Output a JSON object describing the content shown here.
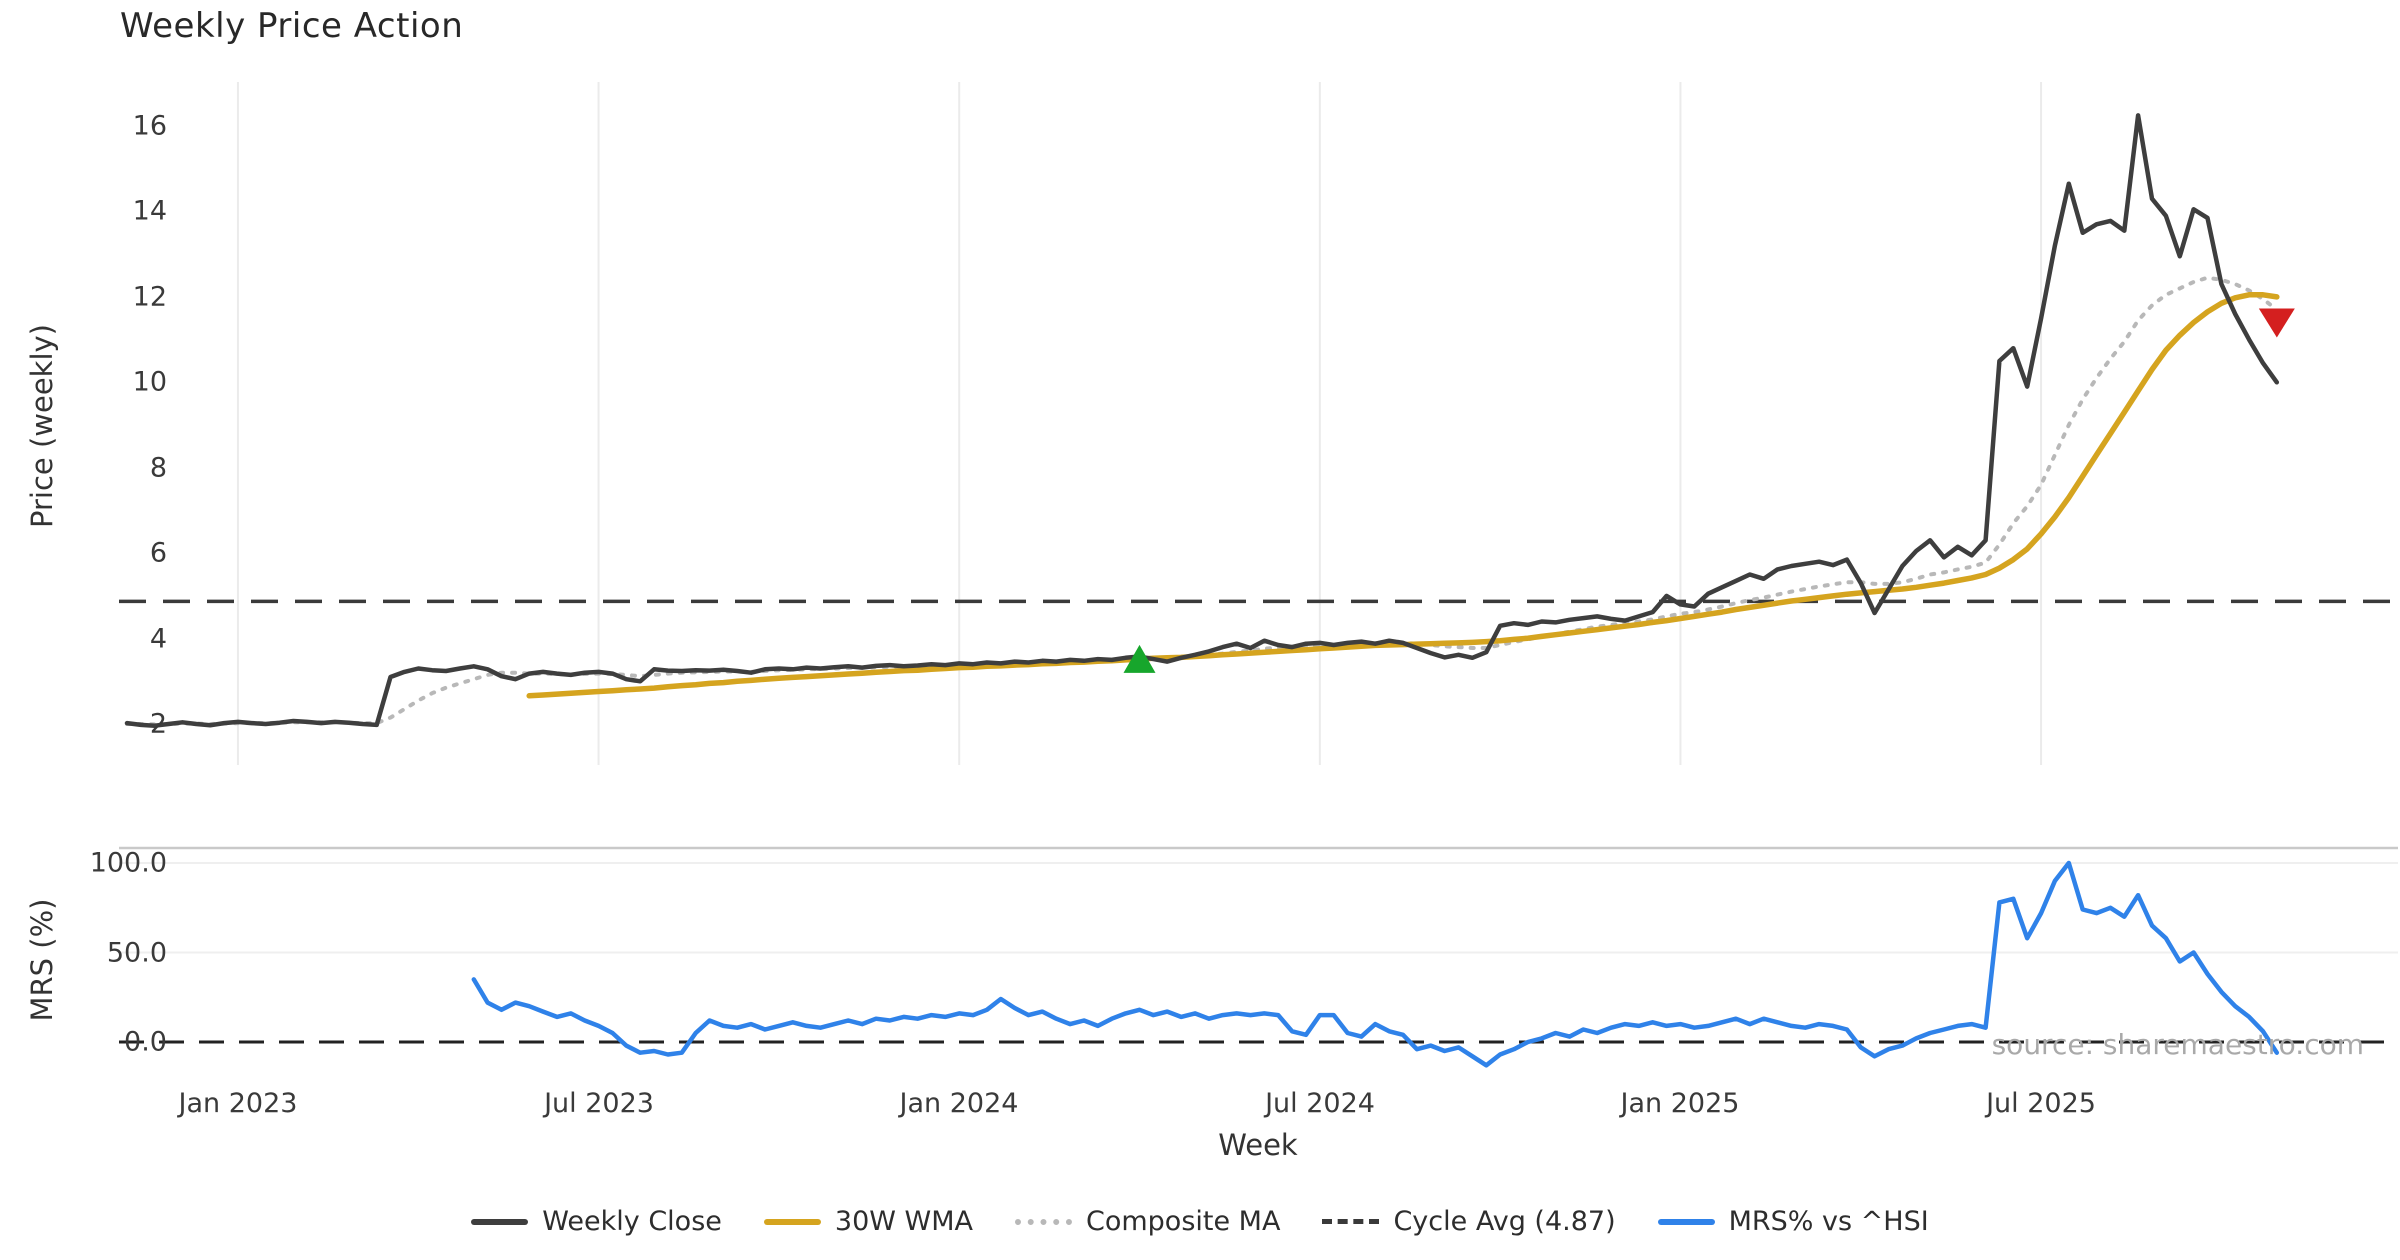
{
  "title": "Weekly Price Action",
  "watermark": "source: sharemaestro.com",
  "axes": {
    "price_ylabel": "Price (weekly)",
    "mrs_ylabel": "MRS (%)",
    "xlabel": "Week"
  },
  "colors": {
    "close": "#3e3e3e",
    "wma": "#d5a41f",
    "composite": "#b8b8b8",
    "cycle": "#3a3a3a",
    "mrs": "#2f82e9",
    "buy_marker": "#17a62c",
    "sell_marker": "#d41f1f",
    "grid": "#ebebeb",
    "hgrid": "#efefef",
    "spine": "#c9c9c9",
    "zero_line": "#222222"
  },
  "legend": {
    "items": [
      {
        "label": "Weekly Close",
        "pattern": "solid",
        "color": "#3e3e3e"
      },
      {
        "label": "30W WMA",
        "pattern": "solid",
        "color": "#d5a41f"
      },
      {
        "label": "Composite MA",
        "pattern": "dotted",
        "color": "#b8b8b8"
      },
      {
        "label": "Cycle Avg (4.87)",
        "pattern": "dashed",
        "color": "#3a3a3a"
      },
      {
        "label": "MRS% vs ^HSI",
        "pattern": "solid",
        "color": "#2f82e9"
      }
    ]
  },
  "chart_data": [
    {
      "type": "line",
      "panel": "price",
      "title": "Weekly Price Action",
      "ylabel": "Price (weekly)",
      "ylim": [
        1.0,
        17.0
      ],
      "y_ticks": [
        2,
        4,
        6,
        8,
        10,
        12,
        14,
        16
      ],
      "x_ticks": [
        {
          "week": 8,
          "label": "Jan 2023"
        },
        {
          "week": 34,
          "label": "Jul 2023"
        },
        {
          "week": 60,
          "label": "Jan 2024"
        },
        {
          "week": 86,
          "label": "Jul 2024"
        },
        {
          "week": 112,
          "label": "Jan 2025"
        },
        {
          "week": 138,
          "label": "Jul 2025"
        }
      ],
      "grid": "vertical",
      "cycle_avg": 4.87,
      "series": [
        {
          "name": "Weekly Close",
          "start_week": 0,
          "values": [
            2.02,
            1.98,
            1.96,
            2.0,
            2.04,
            2.0,
            1.97,
            2.02,
            2.05,
            2.02,
            2.0,
            2.03,
            2.07,
            2.05,
            2.02,
            2.05,
            2.03,
            2.0,
            1.98,
            3.1,
            3.22,
            3.3,
            3.26,
            3.24,
            3.3,
            3.35,
            3.28,
            3.12,
            3.05,
            3.18,
            3.22,
            3.18,
            3.15,
            3.2,
            3.22,
            3.18,
            3.05,
            3.0,
            3.28,
            3.25,
            3.24,
            3.26,
            3.25,
            3.27,
            3.24,
            3.2,
            3.28,
            3.3,
            3.28,
            3.32,
            3.3,
            3.33,
            3.35,
            3.32,
            3.36,
            3.38,
            3.35,
            3.37,
            3.4,
            3.38,
            3.42,
            3.4,
            3.44,
            3.42,
            3.46,
            3.44,
            3.48,
            3.46,
            3.5,
            3.48,
            3.52,
            3.5,
            3.55,
            3.58,
            3.52,
            3.46,
            3.55,
            3.62,
            3.7,
            3.8,
            3.88,
            3.78,
            3.95,
            3.85,
            3.8,
            3.88,
            3.9,
            3.85,
            3.9,
            3.93,
            3.88,
            3.95,
            3.9,
            3.78,
            3.66,
            3.56,
            3.62,
            3.55,
            3.68,
            4.3,
            4.36,
            4.32,
            4.4,
            4.38,
            4.44,
            4.48,
            4.52,
            4.46,
            4.42,
            4.52,
            4.62,
            5.0,
            4.8,
            4.75,
            5.05,
            5.2,
            5.35,
            5.5,
            5.4,
            5.62,
            5.7,
            5.75,
            5.8,
            5.72,
            5.85,
            5.3,
            4.6,
            5.15,
            5.7,
            6.05,
            6.3,
            5.9,
            6.15,
            5.95,
            6.3,
            10.5,
            10.8,
            9.9,
            11.5,
            13.2,
            14.65,
            13.5,
            13.7,
            13.78,
            13.55,
            16.25,
            14.3,
            13.9,
            12.95,
            14.05,
            13.85,
            12.3,
            11.6,
            11.0,
            10.45,
            10.0
          ]
        },
        {
          "name": "30W WMA",
          "start_week": 29,
          "values": [
            2.66,
            2.68,
            2.7,
            2.72,
            2.74,
            2.76,
            2.78,
            2.8,
            2.82,
            2.84,
            2.87,
            2.9,
            2.92,
            2.95,
            2.97,
            3.0,
            3.02,
            3.05,
            3.07,
            3.09,
            3.11,
            3.13,
            3.15,
            3.17,
            3.19,
            3.21,
            3.23,
            3.25,
            3.26,
            3.28,
            3.3,
            3.32,
            3.33,
            3.35,
            3.36,
            3.38,
            3.39,
            3.41,
            3.42,
            3.44,
            3.45,
            3.47,
            3.48,
            3.5,
            3.52,
            3.54,
            3.55,
            3.56,
            3.58,
            3.6,
            3.62,
            3.64,
            3.66,
            3.68,
            3.7,
            3.72,
            3.74,
            3.76,
            3.78,
            3.8,
            3.82,
            3.84,
            3.85,
            3.86,
            3.87,
            3.88,
            3.89,
            3.9,
            3.91,
            3.93,
            3.95,
            3.98,
            4.01,
            4.05,
            4.09,
            4.13,
            4.17,
            4.21,
            4.25,
            4.29,
            4.33,
            4.38,
            4.42,
            4.47,
            4.52,
            4.57,
            4.62,
            4.68,
            4.73,
            4.78,
            4.83,
            4.88,
            4.92,
            4.96,
            5.0,
            5.04,
            5.07,
            5.1,
            5.13,
            5.16,
            5.2,
            5.25,
            5.3,
            5.36,
            5.42,
            5.5,
            5.65,
            5.85,
            6.1,
            6.45,
            6.85,
            7.3,
            7.8,
            8.3,
            8.8,
            9.3,
            9.8,
            10.3,
            10.75,
            11.1,
            11.4,
            11.65,
            11.85,
            11.98,
            12.05,
            12.05,
            12.0
          ]
        },
        {
          "name": "Composite MA",
          "start_week": 0,
          "values": [
            2.0,
            2.0,
            1.99,
            2.0,
            2.01,
            2.01,
            2.0,
            2.01,
            2.02,
            2.02,
            2.02,
            2.03,
            2.04,
            2.04,
            2.04,
            2.04,
            2.03,
            2.02,
            2.02,
            2.15,
            2.35,
            2.55,
            2.72,
            2.85,
            2.95,
            3.05,
            3.15,
            3.2,
            3.2,
            3.18,
            3.18,
            3.17,
            3.16,
            3.17,
            3.18,
            3.17,
            3.15,
            3.12,
            3.15,
            3.18,
            3.2,
            3.21,
            3.22,
            3.23,
            3.23,
            3.22,
            3.24,
            3.26,
            3.27,
            3.28,
            3.29,
            3.3,
            3.31,
            3.32,
            3.33,
            3.34,
            3.35,
            3.36,
            3.37,
            3.38,
            3.39,
            3.4,
            3.41,
            3.42,
            3.43,
            3.44,
            3.45,
            3.46,
            3.47,
            3.48,
            3.49,
            3.5,
            3.52,
            3.54,
            3.55,
            3.55,
            3.56,
            3.58,
            3.61,
            3.65,
            3.69,
            3.72,
            3.76,
            3.79,
            3.81,
            3.83,
            3.85,
            3.86,
            3.87,
            3.88,
            3.89,
            3.9,
            3.9,
            3.88,
            3.85,
            3.82,
            3.8,
            3.78,
            3.78,
            3.85,
            3.92,
            3.98,
            4.05,
            4.1,
            4.16,
            4.22,
            4.28,
            4.32,
            4.36,
            4.4,
            4.45,
            4.52,
            4.58,
            4.62,
            4.68,
            4.75,
            4.83,
            4.9,
            4.96,
            5.03,
            5.1,
            5.16,
            5.22,
            5.27,
            5.32,
            5.32,
            5.28,
            5.28,
            5.32,
            5.4,
            5.5,
            5.55,
            5.62,
            5.68,
            5.78,
            6.2,
            6.7,
            7.1,
            7.6,
            8.3,
            9.0,
            9.6,
            10.1,
            10.55,
            10.95,
            11.45,
            11.8,
            12.05,
            12.2,
            12.35,
            12.45,
            12.4,
            12.3,
            12.15,
            11.95,
            11.7
          ]
        },
        {
          "name": "Cycle Avg (4.87)",
          "type": "hline",
          "value": 4.87
        }
      ],
      "markers": [
        {
          "name": "buy-signal",
          "shape": "triangle-up",
          "week": 73,
          "price": 3.5,
          "color": "#17a62c"
        },
        {
          "name": "sell-signal",
          "shape": "triangle-down",
          "week": 155,
          "price": 11.4,
          "color": "#d41f1f"
        }
      ]
    },
    {
      "type": "line",
      "panel": "mrs",
      "ylabel": "MRS (%)",
      "xlabel": "Week",
      "y_ticks": [
        {
          "value": 100,
          "label": "100.0"
        },
        {
          "value": 50,
          "label": "50.0"
        },
        {
          "value": 0,
          "label": "0.0"
        }
      ],
      "gridlines": [
        100,
        50
      ],
      "zero_line": 0,
      "series": [
        {
          "name": "MRS% vs ^HSI",
          "start_week": 25,
          "values": [
            35,
            22,
            18,
            22,
            20,
            17,
            14,
            16,
            12,
            9,
            5,
            -2,
            -6,
            -5,
            -7,
            -6,
            5,
            12,
            9,
            8,
            10,
            7,
            9,
            11,
            9,
            8,
            10,
            12,
            10,
            13,
            12,
            14,
            13,
            15,
            14,
            16,
            15,
            18,
            24,
            19,
            15,
            17,
            13,
            10,
            12,
            9,
            13,
            16,
            18,
            15,
            17,
            14,
            16,
            13,
            15,
            16,
            15,
            16,
            15,
            6,
            4,
            15,
            15,
            5,
            3,
            10,
            6,
            4,
            -4,
            -2,
            -5,
            -3,
            -8,
            -13,
            -7,
            -4,
            0,
            2,
            5,
            3,
            7,
            5,
            8,
            10,
            9,
            11,
            9,
            10,
            8,
            9,
            11,
            13,
            10,
            13,
            11,
            9,
            8,
            10,
            9,
            7,
            -3,
            -8,
            -4,
            -2,
            2,
            5,
            7,
            9,
            10,
            8,
            78,
            80,
            58,
            72,
            90,
            100,
            74,
            72,
            75,
            70,
            82,
            65,
            58,
            45,
            50,
            38,
            28,
            20,
            14,
            6,
            -6
          ]
        }
      ]
    }
  ]
}
